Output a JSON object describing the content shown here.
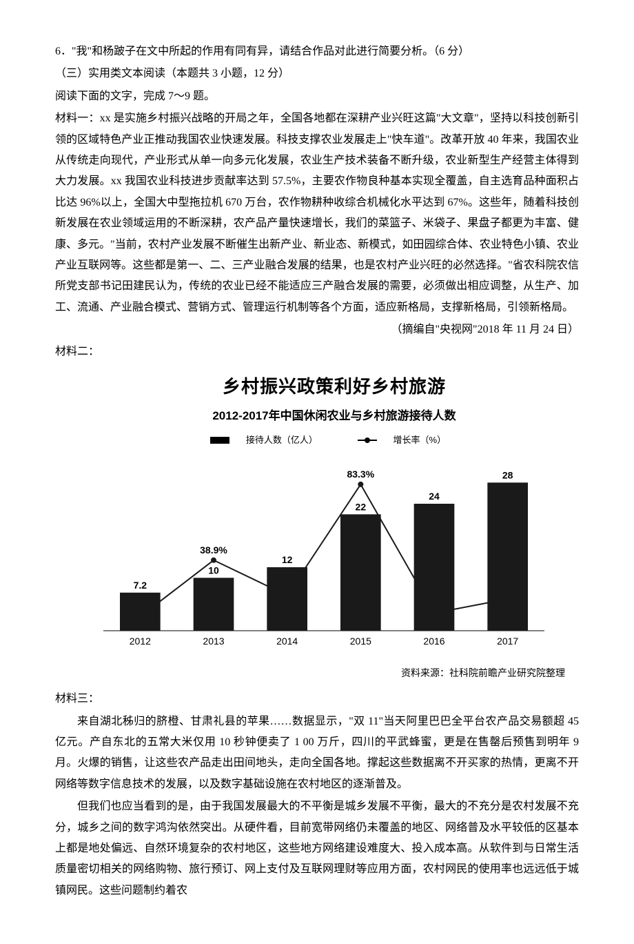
{
  "q6": "6．\"我\"和杨跛子在文中所起的作用有同有异，请结合作品对此进行简要分析。（6 分）",
  "section3": "（三）实用类文本阅读（本题共 3 小题，12 分）",
  "read": "阅读下面的文字，完成 7～9 题。",
  "m1_label": "材料一：",
  "m1_body": "xx 是实施乡村振兴战略的开局之年，全国各地都在深耕产业兴旺这篇\"大文章\"，坚持以科技创新引领的区域特色产业正推动我国农业快速发展。科技支撑农业发展走上\"快车道\"。改革开放 40 年来，我国农业从传统走向现代，产业形式从单一向多元化发展，农业生产技术装备不断升级，农业新型生产经营主体得到大力发展。xx 我国农业科技进步贡献率达到 57.5%，主要农作物良种基本实现全覆盖，自主选育品种面积占比达 96%以上，全国大中型拖拉机 670 万台，农作物耕种收综合机械化水平达到 67%。这些年，随着科技创新发展在农业领域运用的不断深耕，农产品产量快速增长，我们的菜篮子、米袋子、果盘子都更为丰富、健康、多元。\"当前，农村产业发展不断催生出新产业、新业态、新模式，如田园综合体、农业特色小镇、农业产业互联网等。这些都是第一、二、三产业融合发展的结果，也是农村产业兴旺的必然选择。\"省农科院农信所党支部书记田建民认为，传统的农业已经不能适应三产融合发展的需要，必须做出相应调整，从生产、加工、流通、产业融合模式、营销方式、管理运行机制等各个方面，适应新格局，支撑新格局，引领新格局。",
  "m1_src": "（摘编自\"央视网\"2018 年 11 月 24 日）",
  "m2_label": "材料二：",
  "chart": {
    "title1": "乡村振兴政策利好乡村旅游",
    "title2": "2012-2017年中国休闲农业与乡村旅游接待人数",
    "legend_bar": "接待人数（亿人）",
    "legend_line": "增长率（%）",
    "years": [
      "2012",
      "2013",
      "2014",
      "2015",
      "2016",
      "2017"
    ],
    "bars": [
      7.2,
      10,
      12,
      22,
      24,
      28
    ],
    "bar_labels": [
      "7.2",
      "10",
      "12",
      "22",
      "24",
      "28"
    ],
    "growth_labels": [
      "",
      "38.9%",
      "",
      "83.3%",
      "",
      ""
    ],
    "growth_y": [
      8,
      40,
      20,
      83,
      10,
      18
    ],
    "bar_color": "#1a1a1a",
    "line_color": "#1a1a1a",
    "bg": "#ffffff",
    "max_bar": 30,
    "max_growth": 90,
    "source": "资料来源：社科院前瞻产业研究院整理"
  },
  "m3_label": "材料三：",
  "m3_p1": "来自湖北秭归的脐橙、甘肃礼县的苹果……数据显示，\"双 11\"当天阿里巴巴全平台农产品交易额超 45 亿元。产自东北的五常大米仅用 10 秒钟便卖了 1 00 万斤，四川的平武蜂蜜，更是在售罄后预售到明年 9 月。火爆的销售，让这些农产品走出田间地头，走向全国各地。撑起这些数据离不开买家的热情，更离不开网络等数字信息技术的发展，以及数字基础设施在农村地区的逐渐普及。",
  "m3_p2": "但我们也应当看到的是，由于我国发展最大的不平衡是城乡发展不平衡，最大的不充分是农村发展不充分，城乡之间的数字鸿沟依然突出。从硬件看，目前宽带网络仍未覆盖的地区、网络普及水平较低的区基本上都是地处偏远、自然环境复杂的农村地区，这些地方网络建设难度大、投入成本高。从软件到与日常生活质量密切相关的网络购物、旅行预订、网上支付及互联网理财等应用方面，农村网民的使用率也远远低于城镇网民。这些问题制约着农"
}
